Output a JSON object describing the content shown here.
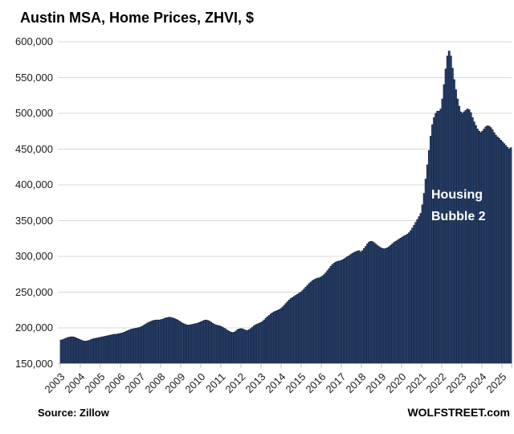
{
  "title": "Austin MSA, Home Prices, ZHVI, $",
  "annotation": {
    "lines": [
      "Housing",
      "Bubble 2"
    ]
  },
  "footer": {
    "source": "Source: Zillow",
    "site": "WOLFSTREET.com"
  },
  "colors": {
    "bar_fill": "#2b4570",
    "bar_stroke": "#13203a",
    "gridline": "#d9d9d9",
    "axis": "#bfbfbf",
    "label": "#1a1a1a",
    "annotation_text": "#ffffff",
    "background": "#ffffff"
  },
  "chart_data": {
    "type": "bar",
    "title": "Austin MSA, Home Prices, ZHVI, $",
    "xlabel": "",
    "ylabel": "",
    "frequency": "monthly",
    "x_start": "2003-01",
    "x_end": "2025-07",
    "x_tick_labels": [
      "2003",
      "2004",
      "2005",
      "2006",
      "2007",
      "2008",
      "2009",
      "2010",
      "2011",
      "2012",
      "2013",
      "2014",
      "2015",
      "2016",
      "2017",
      "2018",
      "2019",
      "2020",
      "2021",
      "2022",
      "2023",
      "2024",
      "2025"
    ],
    "y_ticks": [
      150000,
      200000,
      250000,
      300000,
      350000,
      400000,
      450000,
      500000,
      550000,
      600000
    ],
    "ylim": [
      150000,
      600000
    ],
    "grid": "horizontal",
    "legend": "none",
    "values": [
      183000,
      183500,
      184500,
      185500,
      186500,
      187000,
      187500,
      187500,
      187000,
      186000,
      185000,
      184000,
      183000,
      182000,
      181500,
      181500,
      182000,
      182500,
      183500,
      184500,
      185000,
      185500,
      186000,
      186500,
      187000,
      187500,
      188000,
      188500,
      189000,
      189500,
      190000,
      190500,
      191000,
      191000,
      191500,
      192000,
      192500,
      193000,
      194000,
      195000,
      196000,
      197000,
      198000,
      198500,
      199000,
      199500,
      200000,
      200500,
      201500,
      202500,
      204000,
      205500,
      207000,
      208000,
      209000,
      210000,
      210500,
      211000,
      211000,
      211000,
      211500,
      212000,
      213000,
      214000,
      214500,
      215000,
      214500,
      214000,
      213000,
      212000,
      211000,
      209500,
      208000,
      206500,
      205500,
      204500,
      204000,
      204000,
      204500,
      205000,
      205500,
      206000,
      206500,
      207500,
      208500,
      209500,
      210500,
      211000,
      210500,
      209500,
      208000,
      206500,
      205000,
      204000,
      203500,
      203000,
      202000,
      201000,
      199500,
      198000,
      196500,
      195000,
      194000,
      193500,
      194000,
      195500,
      197500,
      198500,
      199000,
      198500,
      197500,
      196500,
      196500,
      197500,
      199000,
      201000,
      203000,
      204500,
      205500,
      206500,
      207500,
      209000,
      211000,
      213500,
      215500,
      217500,
      219500,
      221000,
      222500,
      223500,
      224500,
      225500,
      227000,
      229000,
      231500,
      234000,
      236500,
      239000,
      241000,
      242500,
      244000,
      245500,
      247000,
      248500,
      250000,
      252000,
      254500,
      257000,
      259500,
      262000,
      264000,
      266000,
      267500,
      268500,
      269500,
      270000,
      271000,
      272500,
      274500,
      277000,
      280000,
      283000,
      286000,
      288500,
      290500,
      292000,
      293000,
      293500,
      294000,
      295000,
      296500,
      298000,
      299500,
      301000,
      302500,
      304000,
      305500,
      306500,
      307500,
      308000,
      306000,
      308000,
      311000,
      314000,
      317500,
      320000,
      321000,
      320500,
      319000,
      317000,
      315000,
      313500,
      312000,
      311000,
      310500,
      311000,
      312000,
      313500,
      315500,
      317500,
      319500,
      321000,
      322500,
      324000,
      325500,
      327000,
      328500,
      329500,
      331000,
      333000,
      336000,
      339500,
      343500,
      347500,
      351500,
      355500,
      360000,
      372000,
      388000,
      408000,
      428000,
      448000,
      468000,
      484000,
      494000,
      500000,
      503000,
      503000,
      506000,
      520000,
      540000,
      562000,
      580000,
      587000,
      580000,
      563000,
      547000,
      533000,
      520000,
      510000,
      502000,
      500000,
      502000,
      504000,
      506000,
      505000,
      501000,
      494000,
      488000,
      483000,
      478000,
      475000,
      473000,
      475000,
      478000,
      481000,
      482500,
      482000,
      480000,
      477000,
      473000,
      469500,
      467000,
      465000,
      462500,
      460000,
      457500,
      455000,
      452500,
      450000,
      452000
    ]
  }
}
